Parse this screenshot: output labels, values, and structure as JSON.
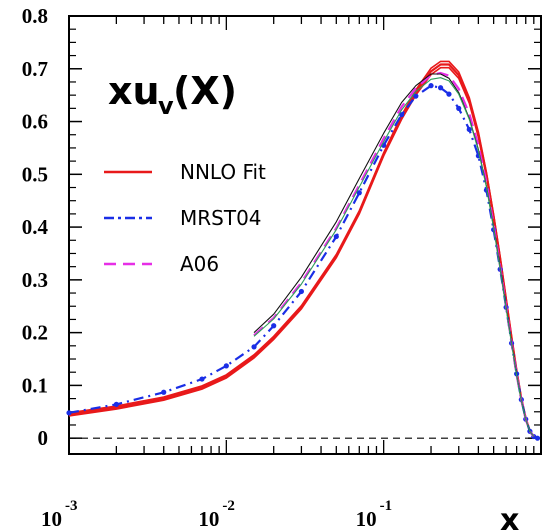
{
  "chart_data": {
    "type": "line",
    "title": {
      "main": "xu",
      "subscript": "v",
      "suffix": "(X)"
    },
    "xlabel": "x",
    "ylabel": "",
    "xscale": "log",
    "xlim": [
      0.001,
      1.0
    ],
    "ylim": [
      -0.03,
      0.8
    ],
    "y_ticks": [
      "0",
      "0.1",
      "0.2",
      "0.3",
      "0.4",
      "0.5",
      "0.6",
      "0.7",
      "0.8"
    ],
    "x_ticks": [
      {
        "base": "10",
        "exp": "-3"
      },
      {
        "base": "10",
        "exp": "-2"
      },
      {
        "base": "10",
        "exp": "-1"
      }
    ],
    "zero_line": true,
    "legend_position": "left",
    "series": [
      {
        "name": "NNLO Fit",
        "color": "#e8191a",
        "style": "solid",
        "x": [
          0.001,
          0.002,
          0.004,
          0.007,
          0.01,
          0.015,
          0.02,
          0.03,
          0.05,
          0.07,
          0.1,
          0.13,
          0.16,
          0.2,
          0.23,
          0.26,
          0.3,
          0.35,
          0.4,
          0.45,
          0.5,
          0.55,
          0.6,
          0.65,
          0.7,
          0.75,
          0.8,
          0.85,
          0.9,
          0.95
        ],
        "y": [
          0.045,
          0.058,
          0.075,
          0.096,
          0.117,
          0.155,
          0.19,
          0.248,
          0.345,
          0.428,
          0.538,
          0.608,
          0.655,
          0.695,
          0.708,
          0.708,
          0.688,
          0.64,
          0.575,
          0.5,
          0.42,
          0.34,
          0.262,
          0.19,
          0.127,
          0.075,
          0.037,
          0.013,
          0.003,
          0.0
        ],
        "band": [
          0.003,
          0.003,
          0.003,
          0.003,
          0.003,
          0.003,
          0.003,
          0.003,
          0.003,
          0.003,
          0.003,
          0.004,
          0.005,
          0.006,
          0.006,
          0.006,
          0.006,
          0.005,
          0.005,
          0.004,
          0.004,
          0.003,
          0.003,
          0.002,
          0.002,
          0.002,
          0.001,
          0.001,
          0.001,
          0.0
        ]
      },
      {
        "name": "MRST04",
        "color": "#1a2ee6",
        "style": "dash-dot",
        "x": [
          0.001,
          0.002,
          0.004,
          0.007,
          0.01,
          0.015,
          0.02,
          0.03,
          0.05,
          0.07,
          0.1,
          0.13,
          0.16,
          0.2,
          0.23,
          0.26,
          0.3,
          0.35,
          0.4,
          0.45,
          0.5,
          0.55,
          0.6,
          0.65,
          0.7,
          0.75,
          0.8,
          0.85,
          0.9,
          0.95
        ],
        "y": [
          0.048,
          0.064,
          0.087,
          0.112,
          0.137,
          0.173,
          0.213,
          0.278,
          0.382,
          0.465,
          0.555,
          0.613,
          0.648,
          0.668,
          0.664,
          0.652,
          0.625,
          0.585,
          0.535,
          0.47,
          0.395,
          0.32,
          0.248,
          0.18,
          0.122,
          0.073,
          0.036,
          0.013,
          0.003,
          0.0
        ]
      },
      {
        "name": "A06",
        "color": "#e62ee6",
        "style": "dashed",
        "x": [
          0.015,
          0.02,
          0.03,
          0.05,
          0.07,
          0.1,
          0.13,
          0.16,
          0.2,
          0.23,
          0.26,
          0.3,
          0.35,
          0.4,
          0.45,
          0.5,
          0.55,
          0.6,
          0.65,
          0.7,
          0.75,
          0.8,
          0.85,
          0.9
        ],
        "y": [
          0.195,
          0.228,
          0.295,
          0.398,
          0.48,
          0.568,
          0.628,
          0.663,
          0.688,
          0.692,
          0.687,
          0.662,
          0.615,
          0.555,
          0.485,
          0.405,
          0.325,
          0.25,
          0.18,
          0.12,
          0.072,
          0.035,
          0.013,
          0.003
        ]
      },
      {
        "name": "",
        "color": "#111111",
        "style": "thin-solid",
        "x": [
          0.015,
          0.02,
          0.03,
          0.05,
          0.07,
          0.1,
          0.13,
          0.16,
          0.2,
          0.23,
          0.26,
          0.3,
          0.35,
          0.4,
          0.45,
          0.5,
          0.55,
          0.6,
          0.65,
          0.7,
          0.75,
          0.8,
          0.85,
          0.9
        ],
        "y": [
          0.2,
          0.235,
          0.305,
          0.41,
          0.492,
          0.578,
          0.636,
          0.668,
          0.69,
          0.69,
          0.682,
          0.655,
          0.606,
          0.547,
          0.478,
          0.4,
          0.322,
          0.248,
          0.18,
          0.12,
          0.072,
          0.035,
          0.013,
          0.003
        ]
      },
      {
        "name": "",
        "color": "#2e9e5a",
        "style": "thin-solid",
        "x": [
          0.015,
          0.02,
          0.03,
          0.05,
          0.07,
          0.1,
          0.13,
          0.16,
          0.2,
          0.23,
          0.26,
          0.3,
          0.35,
          0.4,
          0.45,
          0.5,
          0.55,
          0.6,
          0.65,
          0.7,
          0.75,
          0.8,
          0.85,
          0.9
        ],
        "y": [
          0.193,
          0.226,
          0.292,
          0.395,
          0.476,
          0.562,
          0.622,
          0.657,
          0.68,
          0.683,
          0.677,
          0.652,
          0.604,
          0.545,
          0.476,
          0.398,
          0.32,
          0.246,
          0.178,
          0.119,
          0.071,
          0.035,
          0.013,
          0.003
        ]
      }
    ]
  }
}
